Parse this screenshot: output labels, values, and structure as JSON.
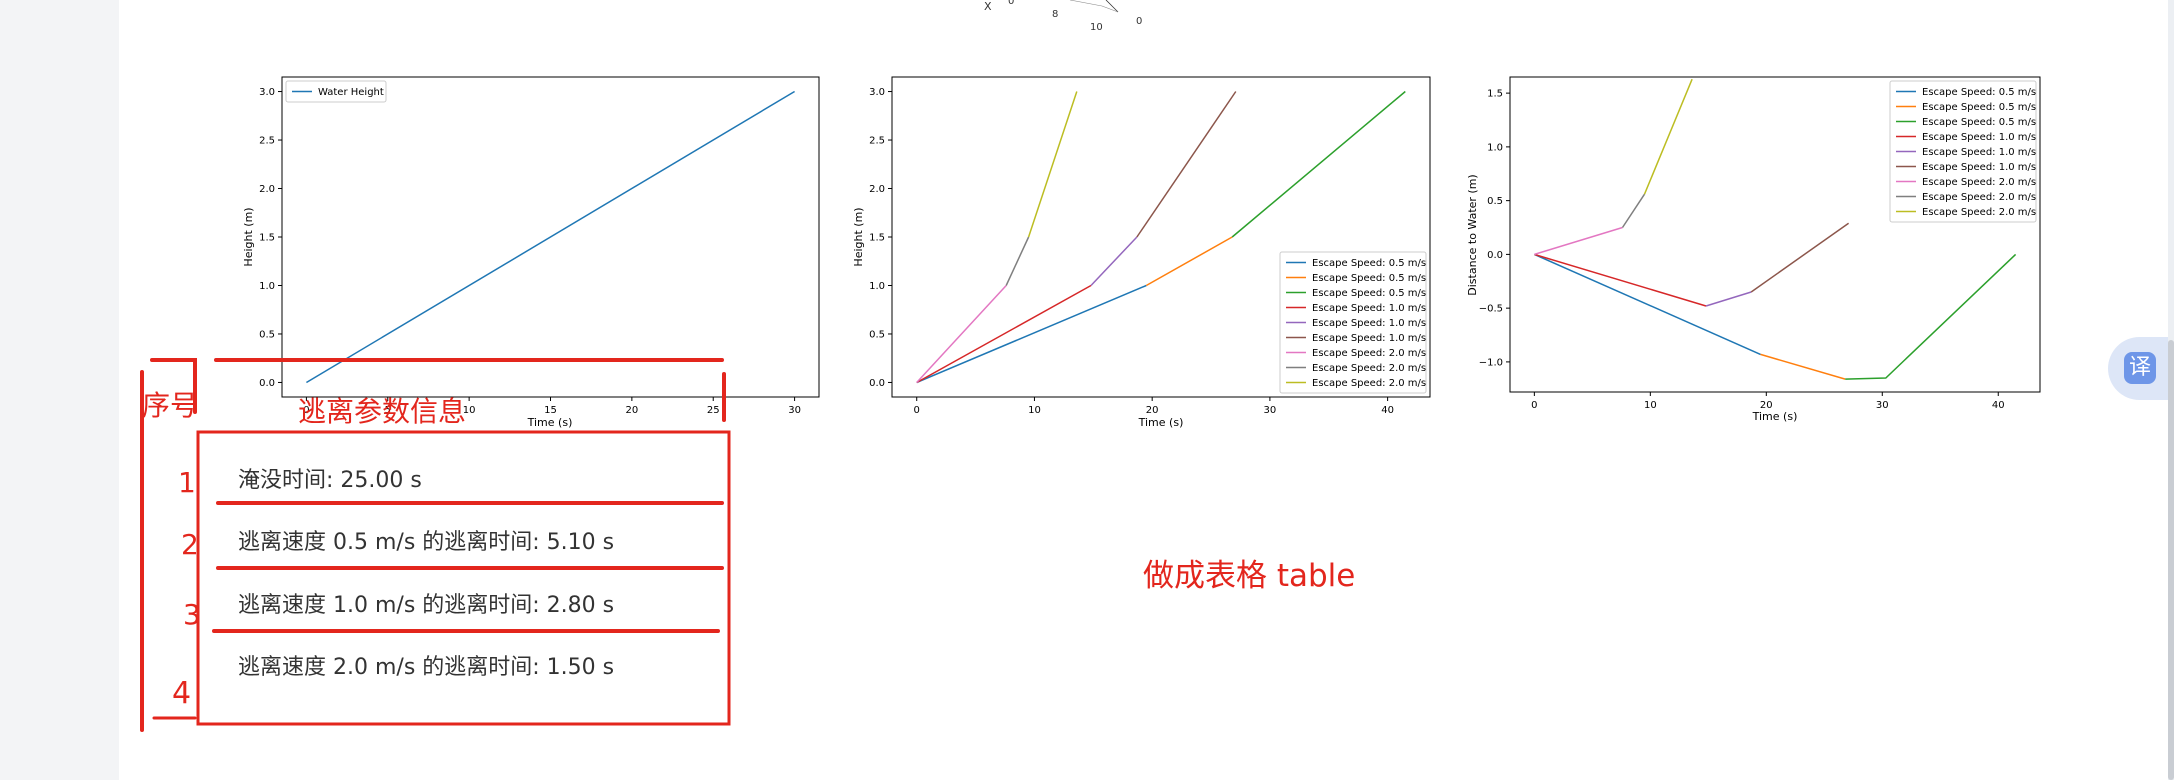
{
  "top_fragment": {
    "labels": [
      "X",
      "0",
      "8",
      "10",
      "0"
    ]
  },
  "charts": [
    {
      "type": "line",
      "xlabel": "Time (s)",
      "ylabel": "Height (m)",
      "xlim": [
        -1.5,
        31.5
      ],
      "ylim": [
        -0.15,
        3.15
      ],
      "xticks": [
        0,
        5,
        10,
        15,
        20,
        25,
        30
      ],
      "yticks": [
        0.0,
        0.5,
        1.0,
        1.5,
        2.0,
        2.5,
        3.0
      ],
      "ytick_labels": [
        "0.0",
        "0.5",
        "1.0",
        "1.5",
        "2.0",
        "2.5",
        "3.0"
      ],
      "legend_location": "upper-left",
      "series": [
        {
          "name": "Water Height",
          "color": "#1f77b4",
          "x": [
            0,
            30
          ],
          "y": [
            0.0,
            3.0
          ]
        }
      ]
    },
    {
      "type": "line",
      "xlabel": "Time (s)",
      "ylabel": "Height (m)",
      "xlim": [
        -2.1,
        43.6
      ],
      "ylim": [
        -0.15,
        3.15
      ],
      "xticks": [
        0,
        10,
        20,
        30,
        40
      ],
      "yticks": [
        0.0,
        0.5,
        1.0,
        1.5,
        2.0,
        2.5,
        3.0
      ],
      "ytick_labels": [
        "0.0",
        "0.5",
        "1.0",
        "1.5",
        "2.0",
        "2.5",
        "3.0"
      ],
      "legend_location": "lower-right",
      "series": [
        {
          "name": "Escape Speed: 0.5 m/s",
          "color": "#1f77b4",
          "x": [
            0,
            19.5
          ],
          "y": [
            0.0,
            1.0
          ]
        },
        {
          "name": "Escape Speed: 0.5 m/s",
          "color": "#ff7f0e",
          "x": [
            19.5,
            26.8
          ],
          "y": [
            1.0,
            1.5
          ]
        },
        {
          "name": "Escape Speed: 0.5 m/s",
          "color": "#2ca02c",
          "x": [
            26.8,
            41.5
          ],
          "y": [
            1.5,
            3.0
          ]
        },
        {
          "name": "Escape Speed: 1.0 m/s",
          "color": "#d62728",
          "x": [
            0,
            14.8
          ],
          "y": [
            0.0,
            1.0
          ]
        },
        {
          "name": "Escape Speed: 1.0 m/s",
          "color": "#9467bd",
          "x": [
            14.8,
            18.7
          ],
          "y": [
            1.0,
            1.5
          ]
        },
        {
          "name": "Escape Speed: 1.0 m/s",
          "color": "#8c564b",
          "x": [
            18.7,
            27.1
          ],
          "y": [
            1.5,
            3.0
          ]
        },
        {
          "name": "Escape Speed: 2.0 m/s",
          "color": "#e377c2",
          "x": [
            0,
            7.6
          ],
          "y": [
            0.0,
            1.0
          ]
        },
        {
          "name": "Escape Speed: 2.0 m/s",
          "color": "#7f7f7f",
          "x": [
            7.6,
            9.5
          ],
          "y": [
            1.0,
            1.5
          ]
        },
        {
          "name": "Escape Speed: 2.0 m/s",
          "color": "#bcbd22",
          "x": [
            9.5,
            13.6
          ],
          "y": [
            1.5,
            3.0
          ]
        }
      ]
    },
    {
      "type": "line",
      "xlabel": "Time (s)",
      "ylabel": "Distance to Water (m)",
      "xlim": [
        -2.1,
        43.6
      ],
      "ylim": [
        -1.28,
        1.65
      ],
      "xticks": [
        0,
        10,
        20,
        30,
        40
      ],
      "yticks": [
        -1.0,
        -0.5,
        0.0,
        0.5,
        1.0,
        1.5
      ],
      "ytick_labels": [
        "−1.0",
        "−0.5",
        "0.0",
        "0.5",
        "1.0",
        "1.5"
      ],
      "legend_location": "upper-right",
      "series": [
        {
          "name": "Escape Speed: 0.5 m/s",
          "color": "#1f77b4",
          "x": [
            0,
            19.5
          ],
          "y": [
            0.0,
            -0.93
          ]
        },
        {
          "name": "Escape Speed: 0.5 m/s",
          "color": "#ff7f0e",
          "x": [
            19.5,
            26.8
          ],
          "y": [
            -0.93,
            -1.16
          ]
        },
        {
          "name": "Escape Speed: 0.5 m/s",
          "color": "#2ca02c",
          "x": [
            26.8,
            30.3,
            41.5
          ],
          "y": [
            -1.16,
            -1.15,
            0.0
          ]
        },
        {
          "name": "Escape Speed: 1.0 m/s",
          "color": "#d62728",
          "x": [
            0,
            14.8
          ],
          "y": [
            0.0,
            -0.48
          ]
        },
        {
          "name": "Escape Speed: 1.0 m/s",
          "color": "#9467bd",
          "x": [
            14.8,
            18.7
          ],
          "y": [
            -0.48,
            -0.35
          ]
        },
        {
          "name": "Escape Speed: 1.0 m/s",
          "color": "#8c564b",
          "x": [
            18.7,
            27.1
          ],
          "y": [
            -0.35,
            0.29
          ]
        },
        {
          "name": "Escape Speed: 2.0 m/s",
          "color": "#e377c2",
          "x": [
            0,
            7.6
          ],
          "y": [
            0.0,
            0.25
          ]
        },
        {
          "name": "Escape Speed: 2.0 m/s",
          "color": "#7f7f7f",
          "x": [
            7.6,
            9.5
          ],
          "y": [
            0.25,
            0.56
          ]
        },
        {
          "name": "Escape Speed: 2.0 m/s",
          "color": "#bcbd22",
          "x": [
            9.5,
            13.6
          ],
          "y": [
            0.56,
            1.63
          ]
        }
      ]
    }
  ],
  "annotations": {
    "header_seq": "序号",
    "header_info": "逃离参数信息",
    "row_numbers": [
      "1",
      "2",
      "3",
      "4"
    ],
    "rows": [
      "淹没时间: 25.00 s",
      "逃离速度 0.5 m/s 的逃离时间: 5.10 s",
      "逃离速度 1.0 m/s 的逃离时间: 2.80 s",
      "逃离速度 2.0 m/s 的逃离时间: 1.50 s"
    ],
    "note": "做成表格 table",
    "translate_label": "译"
  },
  "colors": {
    "annotation_red": "#e3261d",
    "gutter": "#f3f4f6",
    "translate_button": "#6e96e8"
  }
}
